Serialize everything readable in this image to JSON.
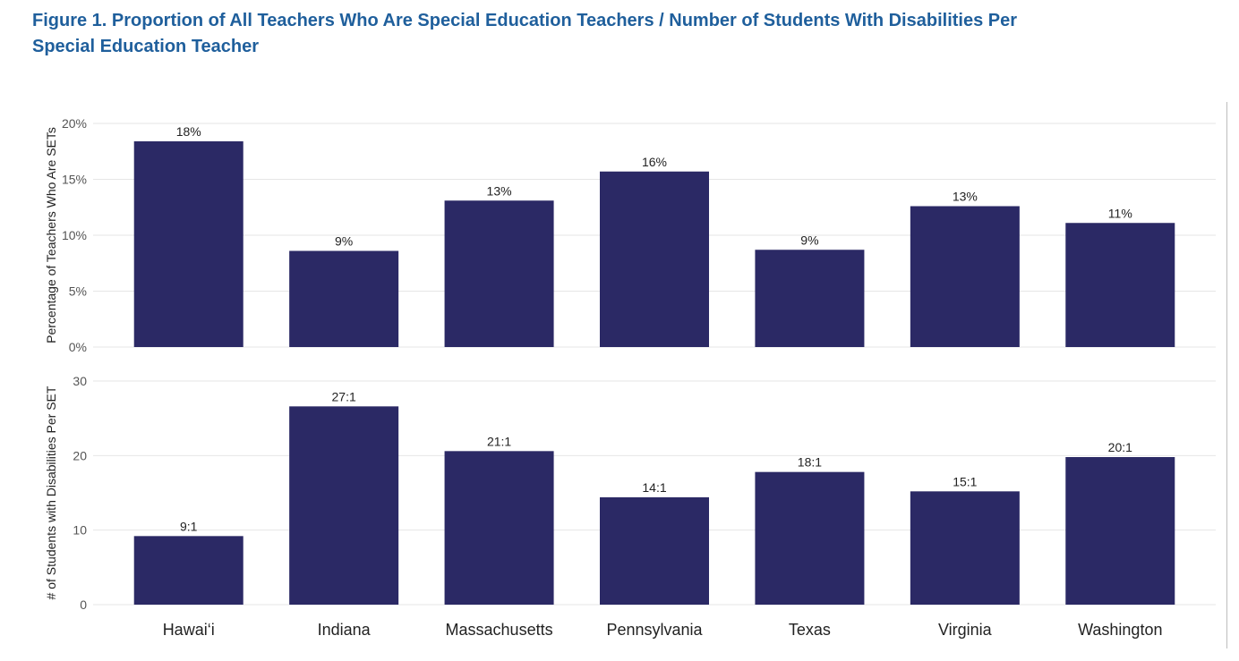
{
  "figure": {
    "title_line1": "Figure 1. Proportion of All Teachers Who Are Special Education Teachers / Number of Students With Disabilities Per",
    "title_line2": "Special Education Teacher"
  },
  "colors": {
    "bar": "#2b2965",
    "title": "#1f5f9c",
    "grid": "#e6e6e6",
    "text": "#222222",
    "tick": "#555555"
  },
  "chart_data": [
    {
      "type": "bar",
      "categories": [
        "Hawai‘i",
        "Indiana",
        "Massachusetts",
        "Pennsylvania",
        "Texas",
        "Virginia",
        "Washington"
      ],
      "values": [
        18.4,
        8.6,
        13.1,
        15.7,
        8.7,
        12.6,
        11.1
      ],
      "data_labels": [
        "18%",
        "9%",
        "13%",
        "16%",
        "9%",
        "13%",
        "11%"
      ],
      "ylabel": "Percentage of Teachers Who Are SETs",
      "ylim": [
        0,
        20
      ],
      "yticks": [
        0,
        5,
        10,
        15,
        20
      ],
      "ytick_labels": [
        "0%",
        "5%",
        "10%",
        "15%",
        "20%"
      ],
      "grid": true
    },
    {
      "type": "bar",
      "categories": [
        "Hawai‘i",
        "Indiana",
        "Massachusetts",
        "Pennsylvania",
        "Texas",
        "Virginia",
        "Washington"
      ],
      "values": [
        9.2,
        26.6,
        20.6,
        14.4,
        17.8,
        15.2,
        19.8
      ],
      "data_labels": [
        "9:1",
        "27:1",
        "21:1",
        "14:1",
        "18:1",
        "15:1",
        "20:1"
      ],
      "ylabel": "# of Students with Disabilities Per SET",
      "ylim": [
        0,
        30
      ],
      "yticks": [
        0,
        10,
        20,
        30
      ],
      "ytick_labels": [
        "0",
        "10",
        "20",
        "30"
      ],
      "grid": true
    }
  ]
}
